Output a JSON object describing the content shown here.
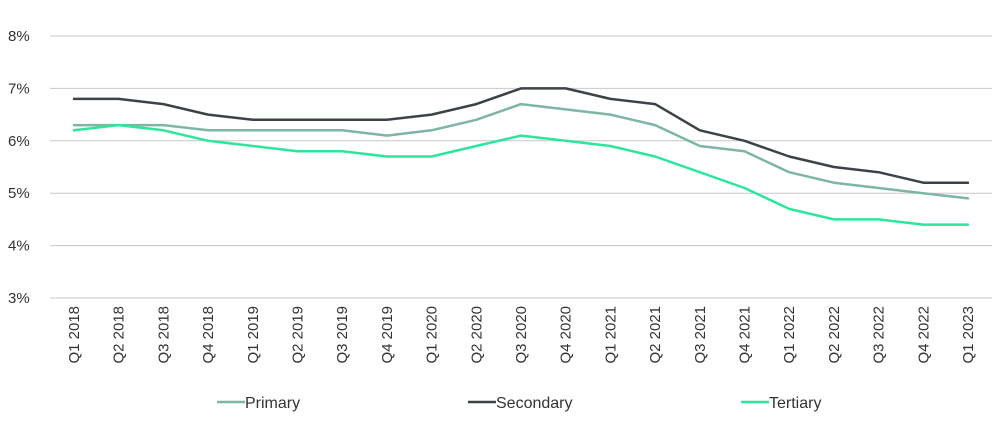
{
  "chart_data": {
    "type": "line",
    "categories": [
      "Q1 2018",
      "Q2 2018",
      "Q3 2018",
      "Q4 2018",
      "Q1 2019",
      "Q2 2019",
      "Q3 2019",
      "Q4 2019",
      "Q1 2020",
      "Q2 2020",
      "Q3 2020",
      "Q4 2020",
      "Q1 2021",
      "Q2 2021",
      "Q3 2021",
      "Q4 2021",
      "Q1 2022",
      "Q2 2022",
      "Q3 2022",
      "Q4 2022",
      "Q1 2023"
    ],
    "yticks": [
      "3%",
      "4%",
      "5%",
      "6%",
      "7%",
      "8%"
    ],
    "ylim": [
      3,
      8
    ],
    "grid": "horizontal",
    "legend_position": "bottom",
    "series": [
      {
        "name": "Primary",
        "color": "#7fb5a3",
        "values": [
          6.3,
          6.3,
          6.3,
          6.2,
          6.2,
          6.2,
          6.2,
          6.1,
          6.2,
          6.4,
          6.7,
          6.6,
          6.5,
          6.3,
          5.9,
          5.8,
          5.4,
          5.2,
          5.1,
          5.0,
          4.9
        ]
      },
      {
        "name": "Secondary",
        "color": "#3c4347",
        "values": [
          6.8,
          6.8,
          6.7,
          6.5,
          6.4,
          6.4,
          6.4,
          6.4,
          6.5,
          6.7,
          7.0,
          7.0,
          6.8,
          6.7,
          6.2,
          6.0,
          5.7,
          5.5,
          5.4,
          5.2,
          5.2
        ]
      },
      {
        "name": "Tertiary",
        "color": "#2ee59d",
        "values": [
          6.2,
          6.3,
          6.2,
          6.0,
          5.9,
          5.8,
          5.8,
          5.7,
          5.7,
          5.9,
          6.1,
          6.0,
          5.9,
          5.7,
          5.4,
          5.1,
          4.7,
          4.5,
          4.5,
          4.4,
          4.4
        ]
      }
    ]
  }
}
